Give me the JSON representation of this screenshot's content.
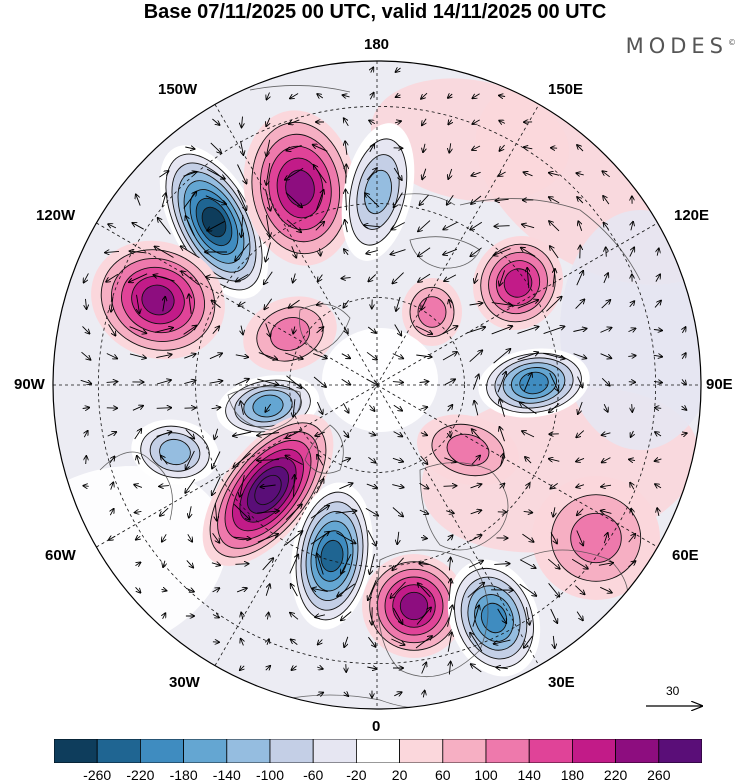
{
  "header": {
    "title": "Base 07/11/2025 00 UTC, valid 14/11/2025 00 UTC",
    "logo": "MODES",
    "logo_mark": "©"
  },
  "map": {
    "projection": "north-polar-stereographic",
    "longitude_labels": {
      "top": "180",
      "top_left": "150W",
      "top_right": "150E",
      "upper_left": "120W",
      "upper_right": "120E",
      "left": "90W",
      "right": "90E",
      "lower_left": "60W",
      "lower_right": "60E",
      "bottom_left": "30W",
      "bottom_right": "30E",
      "bottom": "0"
    },
    "reference_vector": {
      "label": "30",
      "value": 30
    }
  },
  "colorbar": {
    "tick_labels": [
      "-260",
      "-220",
      "-180",
      "-140",
      "-100",
      "-60",
      "-20",
      "20",
      "60",
      "100",
      "140",
      "180",
      "220",
      "260"
    ],
    "colors": [
      "#0e3d5c",
      "#1f6592",
      "#3f8cc0",
      "#64a6d2",
      "#95bde0",
      "#c4cfe6",
      "#e6e6f2",
      "#ffffff",
      "#fbd7dc",
      "#f6afc3",
      "#ee79ac",
      "#e04398",
      "#c21b88",
      "#8d0d7f",
      "#5a0e78"
    ]
  },
  "anomalies": [
    {
      "name": "low-150w-a",
      "sign": "negative",
      "intensity": 270
    },
    {
      "name": "high-165w",
      "sign": "positive",
      "intensity": 210
    },
    {
      "name": "low-175e",
      "sign": "negative",
      "intensity": 140
    },
    {
      "name": "high-135e",
      "sign": "positive",
      "intensity": 170
    },
    {
      "name": "high-110e",
      "sign": "positive",
      "intensity": 100
    },
    {
      "name": "low-95e",
      "sign": "negative",
      "intensity": 190
    },
    {
      "name": "high-120w",
      "sign": "positive",
      "intensity": 190
    },
    {
      "name": "high-110w",
      "sign": "positive",
      "intensity": 90
    },
    {
      "name": "low-80w",
      "sign": "negative",
      "intensity": 170
    },
    {
      "name": "low-70w",
      "sign": "negative",
      "intensity": 110
    },
    {
      "name": "high-45w",
      "sign": "positive",
      "intensity": 270
    },
    {
      "name": "low-20w",
      "sign": "negative",
      "intensity": 230
    },
    {
      "name": "high-15e",
      "sign": "positive",
      "intensity": 190
    },
    {
      "name": "low-30e",
      "sign": "negative",
      "intensity": 200
    },
    {
      "name": "high-55e",
      "sign": "positive",
      "intensity": 90
    },
    {
      "name": "high-25e-high-lat",
      "sign": "positive",
      "intensity": 70
    }
  ]
}
